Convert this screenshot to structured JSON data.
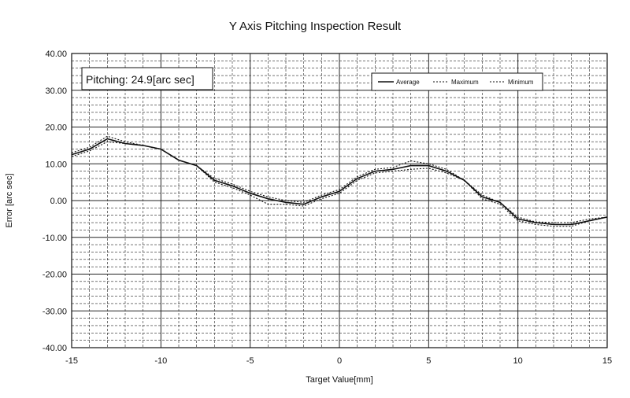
{
  "chart_data": {
    "type": "line",
    "title": "Y Axis Pitching Inspection Result",
    "xlabel": "Target Value[mm]",
    "ylabel": "Error [arc sec]",
    "xlim": [
      -15,
      15
    ],
    "ylim": [
      -40,
      40
    ],
    "x_ticks": [
      "-15",
      "-10",
      "-5",
      "0",
      "5",
      "10",
      "15"
    ],
    "y_ticks": [
      "40.00",
      "30.00",
      "20.00",
      "10.00",
      "0.00",
      "-10.00",
      "-20.00",
      "-30.00",
      "-40.00"
    ],
    "grid": true,
    "legend_position": "top-right",
    "annotation": "Pitching: 24.9[arc sec]",
    "series": [
      {
        "name": "Average",
        "style": "solid",
        "color": "#111111",
        "x": [
          -15,
          -14,
          -13,
          -12,
          -11,
          -10,
          -9,
          -8,
          -7,
          -6,
          -5,
          -4,
          -3,
          -2,
          -1,
          0,
          1,
          2,
          3,
          4,
          5,
          6,
          7,
          8,
          9,
          10,
          11,
          12,
          13,
          14,
          15
        ],
        "y": [
          12.5,
          14,
          16.8,
          15.5,
          15,
          14,
          11,
          9.5,
          5.5,
          4,
          2,
          0.5,
          -0.5,
          -1,
          1,
          2.5,
          6,
          8,
          8.5,
          9.5,
          9.5,
          8,
          5.5,
          1,
          -0.5,
          -5,
          -6,
          -6.5,
          -6.5,
          -5.5,
          -4.5
        ]
      },
      {
        "name": "Maximum",
        "style": "dotted",
        "color": "#111111",
        "x": [
          -15,
          -14,
          -13,
          -12,
          -11,
          -10,
          -9,
          -8,
          -7,
          -6,
          -5,
          -4,
          -3,
          -2,
          -1,
          0,
          1,
          2,
          3,
          4,
          5,
          6,
          7,
          8,
          9,
          10,
          11,
          12,
          13,
          14,
          15
        ],
        "y": [
          13,
          14.5,
          17.5,
          16,
          15,
          14,
          11,
          9.5,
          6,
          4.5,
          2.5,
          1,
          0,
          -0.5,
          1.5,
          3,
          6.5,
          8.5,
          9,
          10.8,
          10,
          8.5,
          5.5,
          1.5,
          -0.5,
          -4.5,
          -5.8,
          -6,
          -6,
          -5,
          -4.5
        ]
      },
      {
        "name": "Minimum",
        "style": "dotted",
        "color": "#111111",
        "x": [
          -15,
          -14,
          -13,
          -12,
          -11,
          -10,
          -9,
          -8,
          -7,
          -6,
          -5,
          -4,
          -3,
          -2,
          -1,
          0,
          1,
          2,
          3,
          4,
          5,
          6,
          7,
          8,
          9,
          10,
          11,
          12,
          13,
          14,
          15
        ],
        "y": [
          12,
          13.5,
          16,
          15.5,
          15,
          14,
          11,
          9.5,
          5,
          3.5,
          1.5,
          -1,
          -1,
          -1.5,
          0.5,
          2,
          5.5,
          7.5,
          8,
          8.5,
          8.8,
          7.5,
          5.5,
          0.5,
          -1,
          -5.5,
          -6.5,
          -7,
          -7,
          -5.5,
          -4.5
        ]
      }
    ]
  }
}
